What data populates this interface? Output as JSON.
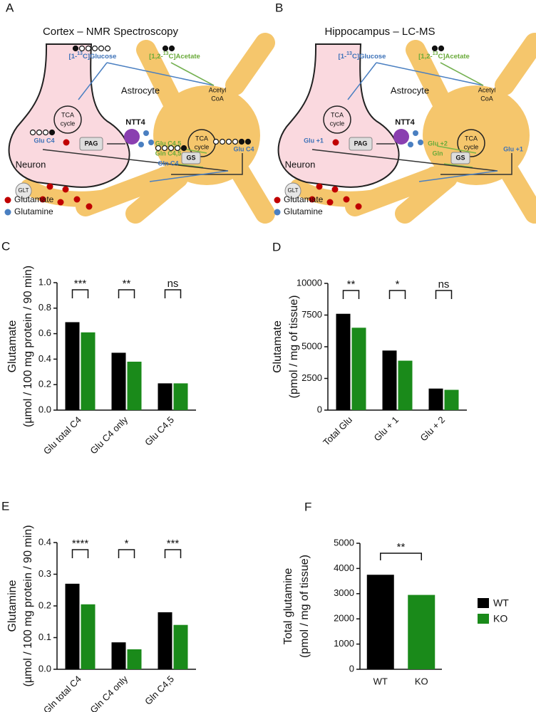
{
  "diagram_a": {
    "label": "A",
    "title": "Cortex – NMR Spectroscopy",
    "glucose": {
      "pre": "[1-",
      "sup": "13",
      "post": "C]Glucose"
    },
    "acetate": {
      "pre": "[1,2-",
      "sup": "13",
      "post": "C]Acetate"
    },
    "astrocyte": "Astrocyte",
    "acetyl": [
      "Acetyl",
      "CoA"
    ],
    "tca_neuron": [
      "TCA",
      "cycle"
    ],
    "tca_astro": [
      "TCA",
      "cycle"
    ],
    "ntt4": "NTT4",
    "pag": "PAG",
    "neuron_glu": "Glu C4",
    "neuron": "Neuron",
    "glt": "GLT",
    "astro_labels": [
      "Glu C4,5",
      "Gln C4,5",
      "Gln C4"
    ],
    "gs": "GS",
    "astro_glu": "Glu C4",
    "legend": [
      "Glutamate",
      "Glutamine"
    ]
  },
  "diagram_b": {
    "label": "B",
    "title": "Hippocampus – LC-MS",
    "glucose": {
      "pre": "[1-",
      "sup": "13",
      "post": "C]Glucose"
    },
    "acetate": {
      "pre": "[1,2-",
      "sup": "13",
      "post": "C]Acetate"
    },
    "astrocyte": "Astrocyte",
    "acetyl": [
      "Acetyl",
      "CoA"
    ],
    "tca_neuron": [
      "TCA",
      "cycle"
    ],
    "tca_astro": [
      "TCA",
      "cycle"
    ],
    "ntt4": "NTT4",
    "pag": "PAG",
    "neuron_glu": "Glu +1",
    "neuron": "Neuron",
    "glt": "GLT",
    "astro_labels": [
      "Glu +2",
      "Gln"
    ],
    "gs": "GS",
    "astro_glu": "Glu +1",
    "legend": [
      "Glutamate",
      "Glutamine"
    ]
  },
  "chart_data": [
    {
      "type": "bar",
      "label": "C",
      "ylabel": [
        "Glutamate",
        "(µmol / 100 mg protein / 90 min)"
      ],
      "categories": [
        "Glu total C4",
        "Glu C4 only",
        "Glu C4,5"
      ],
      "series": [
        {
          "name": "WT",
          "color": "#000000",
          "values": [
            0.69,
            0.45,
            0.21
          ]
        },
        {
          "name": "KO",
          "color": "#1a8a1a",
          "values": [
            0.61,
            0.38,
            0.21
          ]
        }
      ],
      "ylim": [
        0,
        1.0
      ],
      "yticks": [
        {
          "value": 0,
          "label": "0.0"
        },
        0.2,
        0.4,
        0.6,
        0.8,
        {
          "value": 1.0,
          "label": "1.0"
        }
      ],
      "significance": [
        "***",
        "**",
        "ns"
      ]
    },
    {
      "type": "bar",
      "label": "D",
      "ylabel": [
        "Glutamate",
        "(pmol / mg of tissue)"
      ],
      "categories": [
        "Total Glu",
        "Glu + 1",
        "Glu + 2"
      ],
      "series": [
        {
          "name": "WT",
          "color": "#000000",
          "values": [
            7600,
            4700,
            1700
          ]
        },
        {
          "name": "KO",
          "color": "#1a8a1a",
          "values": [
            6500,
            3900,
            1600
          ]
        }
      ],
      "ylim": [
        0,
        10000
      ],
      "yticks": [
        0,
        2500,
        5000,
        7500,
        10000
      ],
      "significance": [
        "**",
        "*",
        "ns"
      ]
    },
    {
      "type": "bar",
      "label": "E",
      "ylabel": [
        "Glutamine",
        "(µmol / 100 mg protein / 90 min)"
      ],
      "categories": [
        "Gln total C4",
        "Gln C4 only",
        "Gln C4,5"
      ],
      "series": [
        {
          "name": "WT",
          "color": "#000000",
          "values": [
            0.27,
            0.085,
            0.18
          ]
        },
        {
          "name": "KO",
          "color": "#1a8a1a",
          "values": [
            0.205,
            0.063,
            0.14
          ]
        }
      ],
      "ylim": [
        0,
        0.4
      ],
      "yticks": [
        {
          "value": 0,
          "label": "0.0"
        },
        0.1,
        0.2,
        0.3,
        0.4
      ],
      "significance": [
        "****",
        "*",
        "***"
      ]
    },
    {
      "type": "bar",
      "label": "F",
      "ylabel": [
        "Total glutamine",
        "(pmol / mg of tissue)"
      ],
      "categories": [
        "WT",
        "KO"
      ],
      "values": [
        3750,
        2950
      ],
      "colors": [
        "#000000",
        "#1a8a1a"
      ],
      "ylim": [
        0,
        5000
      ],
      "yticks": [
        0,
        1000,
        2000,
        3000,
        4000,
        5000
      ],
      "significance": [
        "**"
      ]
    }
  ]
}
